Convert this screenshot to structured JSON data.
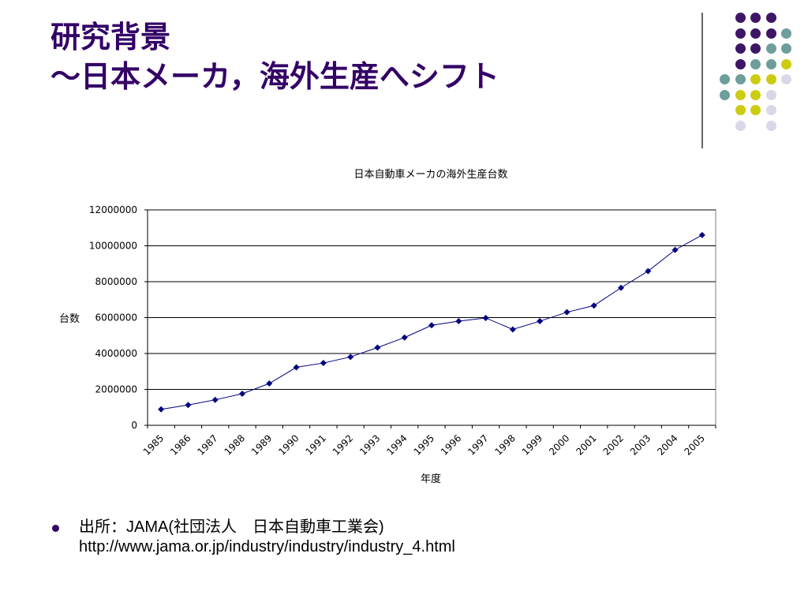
{
  "slide": {
    "title_line1": "研究背景",
    "title_line2": "～日本メーカ，海外生産へシフト",
    "title_color": "#330066"
  },
  "decoration": {
    "dot_colors": {
      "purple": "#3d1566",
      "teal": "#6e9e9c",
      "yellow": "#cccc11",
      "lavender": "#d8d8e8"
    },
    "dot_rows": [
      [
        null,
        "purple",
        "purple",
        "purple",
        null
      ],
      [
        null,
        "purple",
        "purple",
        "purple",
        "teal"
      ],
      [
        null,
        "purple",
        "purple",
        "teal",
        "teal"
      ],
      [
        null,
        "purple",
        "teal",
        "teal",
        "yellow"
      ],
      [
        "teal",
        "teal",
        "yellow",
        "yellow",
        "lavender"
      ],
      [
        "teal",
        "yellow",
        "yellow",
        "lavender",
        null
      ],
      [
        null,
        "yellow",
        "yellow",
        "lavender",
        null
      ],
      [
        null,
        "lavender",
        null,
        "lavender",
        null
      ]
    ]
  },
  "chart_data": {
    "type": "line",
    "title": "日本自動車メーカの海外生産台数",
    "xlabel": "年度",
    "ylabel": "台数",
    "categories": [
      "1985",
      "1986",
      "1987",
      "1988",
      "1989",
      "1990",
      "1991",
      "1992",
      "1993",
      "1994",
      "1995",
      "1996",
      "1997",
      "1998",
      "1999",
      "2000",
      "2001",
      "2002",
      "2003",
      "2004",
      "2005"
    ],
    "series": [
      {
        "values": [
          890000,
          1130000,
          1420000,
          1760000,
          2330000,
          3230000,
          3470000,
          3810000,
          4330000,
          4890000,
          5570000,
          5800000,
          5980000,
          5340000,
          5800000,
          6300000,
          6670000,
          7660000,
          8590000,
          9770000,
          10600000
        ],
        "color": "#000080"
      }
    ],
    "ylim": [
      0,
      12000000
    ],
    "yticks": [
      "0",
      "2000000",
      "4000000",
      "6000000",
      "8000000",
      "10000000",
      "12000000"
    ],
    "grid": "horizontal",
    "legend": "none",
    "marker": "diamond"
  },
  "source": {
    "line1": "出所：JAMA(社団法人　日本自動車工業会)",
    "line2": "http://www.jama.or.jp/industry/industry/industry_4.html"
  }
}
